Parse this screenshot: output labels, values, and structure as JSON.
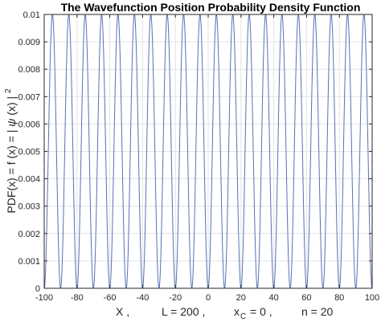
{
  "chart_data": {
    "type": "line",
    "title": "The Wavefunction Position Probability Density Function",
    "xlabel": {
      "x": "X ,",
      "L": "L = 200 ,",
      "xc_main": "x",
      "xc_sub": "C",
      "xc_rest": "= 0 ,",
      "n": "n = 20"
    },
    "ylabel": {
      "left": "PDF(x)  =  f (x)  =  |",
      "psi": "ψ",
      "right": "(x) |",
      "sup": "2"
    },
    "xlim": [
      -100,
      100
    ],
    "ylim": [
      0,
      0.01
    ],
    "x_ticks": [
      -100,
      -80,
      -60,
      -40,
      -20,
      0,
      20,
      40,
      60,
      80,
      100
    ],
    "x_tick_labels": [
      "-100",
      "-80",
      "-60",
      "-40",
      "-20",
      "0",
      "20",
      "40",
      "60",
      "80",
      "100"
    ],
    "y_ticks": [
      0,
      0.001,
      0.002,
      0.003,
      0.004,
      0.005,
      0.006,
      0.007,
      0.008,
      0.009,
      0.01
    ],
    "y_tick_labels": [
      "0",
      "0.001",
      "0.002",
      "0.003",
      "0.004",
      "0.005",
      "0.006",
      "0.007",
      "0.008",
      "0.009",
      "0.01"
    ],
    "grid": true,
    "series": [
      {
        "function": "f(x) = (2/L) * sin^2(n*pi*(x - xc + L/2)/L)",
        "L": 200,
        "xc": 0,
        "n": 20,
        "color": "#5a6fb8"
      }
    ]
  }
}
